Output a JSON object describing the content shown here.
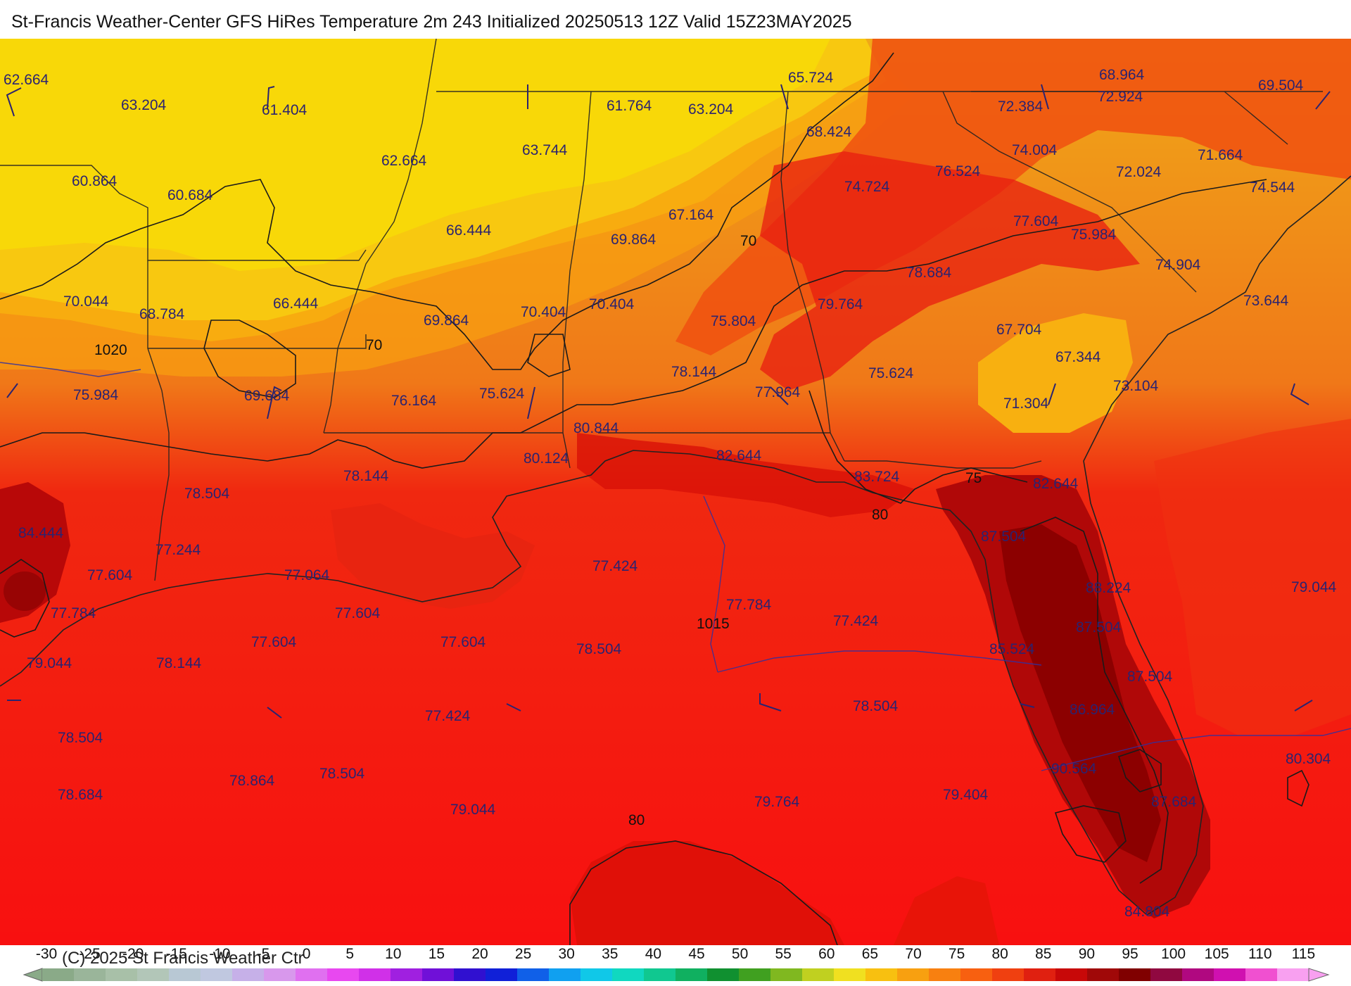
{
  "title": "St-Francis Weather-Center GFS HiRes Temperature 2m  243 Initialized 20250513 12Z Valid 15Z23MAY2025",
  "copyright": "(C) 2025 St Francis Weather Ctr",
  "legend": {
    "ticks": [
      "-30",
      "-25",
      "-20",
      "-15",
      "-10",
      "-5",
      "0",
      "5",
      "10",
      "15",
      "20",
      "25",
      "30",
      "35",
      "40",
      "45",
      "50",
      "55",
      "60",
      "65",
      "70",
      "75",
      "80",
      "85",
      "90",
      "95",
      "100",
      "105",
      "110",
      "115"
    ],
    "colors": [
      "#8aaa88",
      "#9ab59a",
      "#a8c0a8",
      "#b2c6b8",
      "#b8c8d4",
      "#c0c8e0",
      "#c6b0e8",
      "#d898ec",
      "#e070f0",
      "#e848f0",
      "#d030e8",
      "#a020e0",
      "#7010d8",
      "#3010d0",
      "#1020d8",
      "#1060e8",
      "#10a0f0",
      "#10c8e8",
      "#10d8c0",
      "#10c890",
      "#10b060",
      "#109030",
      "#40a020",
      "#80b820",
      "#c0d020",
      "#f0e020",
      "#f8c010",
      "#f8a010",
      "#f88010",
      "#f86010",
      "#f04010",
      "#e02010",
      "#c80808",
      "#a00808",
      "#800000",
      "#900840",
      "#b00880",
      "#d010b0",
      "#f050d0",
      "#f8a0f0"
    ]
  },
  "contour_labels": [
    {
      "text": "70",
      "type": "isotherm"
    },
    {
      "text": "70",
      "type": "isotherm"
    },
    {
      "text": "75",
      "type": "isotherm"
    },
    {
      "text": "80",
      "type": "isotherm"
    },
    {
      "text": "80",
      "type": "isotherm"
    },
    {
      "text": "1020",
      "type": "isobar"
    },
    {
      "text": "1015",
      "type": "isobar"
    }
  ],
  "station_values": [
    "62.664",
    "63.204",
    "61.404",
    "65.724",
    "68.964",
    "69.504",
    "61.764",
    "63.204",
    "72.384",
    "72.924",
    "62.664",
    "63.744",
    "68.424",
    "74.004",
    "71.664",
    "60.864",
    "60.684",
    "76.524",
    "72.024",
    "74.544",
    "74.724",
    "66.444",
    "67.164",
    "77.604",
    "75.984",
    "69.864",
    "74.904",
    "78.684",
    "73.644",
    "70.044",
    "68.784",
    "66.444",
    "69.864",
    "70.404",
    "70.404",
    "79.764",
    "67.704",
    "75.804",
    "67.344",
    "75.624",
    "78.144",
    "73.104",
    "75.984",
    "69.684",
    "76.164",
    "75.624",
    "77.964",
    "71.304",
    "80.844",
    "82.644",
    "80.124",
    "78.144",
    "83.724",
    "82.644",
    "78.504",
    "84.444",
    "77.244",
    "87.504",
    "77.604",
    "77.064",
    "77.424",
    "79.044",
    "88.224",
    "77.784",
    "77.784",
    "77.604",
    "77.424",
    "87.504",
    "77.604",
    "77.604",
    "78.504",
    "85.524",
    "79.044",
    "78.144",
    "87.504",
    "86.964",
    "77.424",
    "78.504",
    "78.504",
    "80.304",
    "90.564",
    "78.864",
    "78.504",
    "78.684",
    "79.044",
    "79.764",
    "79.404",
    "87.684",
    "84.804"
  ]
}
